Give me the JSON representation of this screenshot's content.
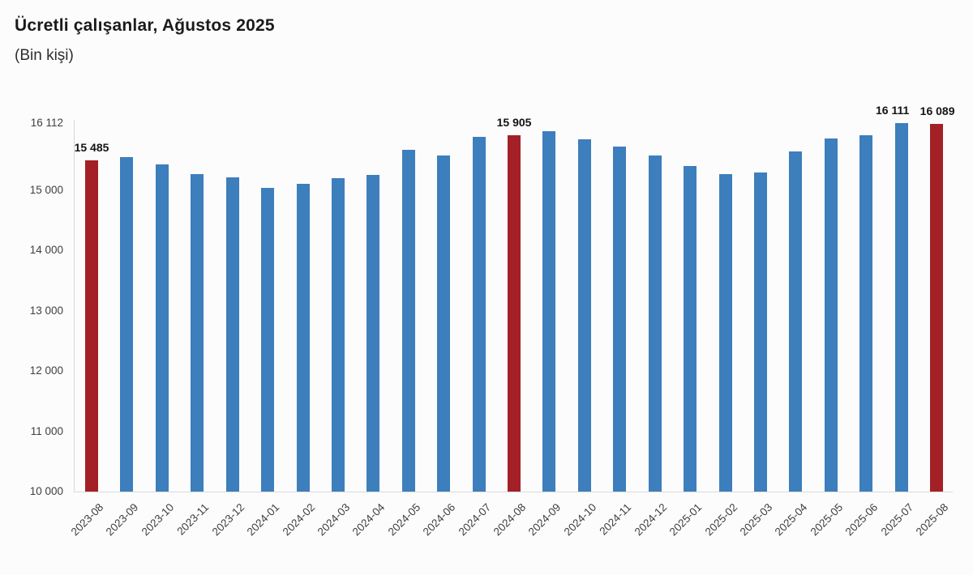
{
  "header": {
    "title": "Ücretli çalışanlar, Ağustos 2025",
    "subtitle": "(Bin kişi)"
  },
  "colors": {
    "bar_blue": "#3d7ebd",
    "bar_red": "#a32026",
    "axis_line": "#d9d9d9",
    "tick_text": "#3f3f3f",
    "annotation_text": "#141414",
    "background": "#fcfcfc"
  },
  "chart_data": {
    "type": "bar",
    "title": "Ücretli çalışanlar, Ağustos 2025",
    "unit_label": "(Bin kişi)",
    "xlabel": "",
    "ylabel": "",
    "grid": false,
    "legend": false,
    "ylim": [
      10000,
      16112
    ],
    "yticks": [
      {
        "value": 16112,
        "label": "16 112"
      },
      {
        "value": 15000,
        "label": "15 000"
      },
      {
        "value": 14000,
        "label": "14 000"
      },
      {
        "value": 13000,
        "label": "13 000"
      },
      {
        "value": 12000,
        "label": "12 000"
      },
      {
        "value": 11000,
        "label": "11 000"
      },
      {
        "value": 10000,
        "label": "10 000"
      }
    ],
    "categories": [
      "2023-08",
      "2023-09",
      "2023-10",
      "2023-11",
      "2023-12",
      "2024-01",
      "2024-02",
      "2024-03",
      "2024-04",
      "2024-05",
      "2024-06",
      "2024-07",
      "2024-08",
      "2024-09",
      "2024-10",
      "2024-11",
      "2024-12",
      "2025-01",
      "2025-02",
      "2025-03",
      "2025-04",
      "2025-05",
      "2025-06",
      "2025-07",
      "2025-08"
    ],
    "values": [
      15485,
      15550,
      15420,
      15265,
      15210,
      15035,
      15100,
      15190,
      15250,
      15660,
      15570,
      15880,
      15905,
      15970,
      15840,
      15720,
      15570,
      15400,
      15260,
      15290,
      15640,
      15855,
      15910,
      16111,
      16089
    ],
    "highlight_indices": [
      0,
      12,
      24
    ],
    "annotations": [
      {
        "index": 0,
        "label": "15 485",
        "dx": 0
      },
      {
        "index": 12,
        "label": "15 905",
        "dx": 0
      },
      {
        "index": 23,
        "label": "16 111",
        "dx": -11
      },
      {
        "index": 24,
        "label": "16 089",
        "dx": 1
      }
    ]
  }
}
